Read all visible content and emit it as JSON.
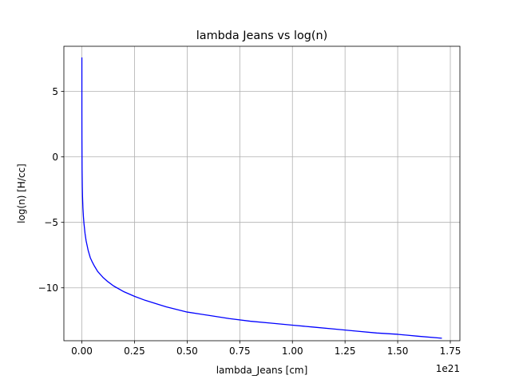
{
  "chart_data": {
    "type": "line",
    "title": "lambda Jeans vs log(n)",
    "xlabel": "lambda_Jeans [cm]",
    "ylabel": "log(n) [H/cc]",
    "x_offset_label": "1e21",
    "x_scale": 1e+21,
    "xlim": [
      -0.0855,
      1.7955
    ],
    "ylim": [
      -14.04,
      8.45
    ],
    "grid": true,
    "xticks": [
      0.0,
      0.25,
      0.5,
      0.75,
      1.0,
      1.25,
      1.5,
      1.75
    ],
    "xtick_labels": [
      "0.00",
      "0.25",
      "0.50",
      "0.75",
      "1.00",
      "1.25",
      "1.50",
      "1.75"
    ],
    "yticks": [
      5,
      0,
      -5,
      -10
    ],
    "ytick_labels": [
      "5",
      "0",
      "−5",
      "−10"
    ],
    "series": [
      {
        "name": "lambda_Jeans",
        "color": "#0000ff",
        "x": [
          0.0,
          0.0001,
          0.0003,
          0.001,
          0.002,
          0.003,
          0.005,
          0.0075,
          0.01,
          0.015,
          0.02,
          0.03,
          0.04,
          0.05,
          0.06,
          0.075,
          0.1,
          0.125,
          0.15,
          0.2,
          0.25,
          0.3,
          0.4,
          0.5,
          0.6,
          0.7,
          0.8,
          0.9,
          1.0,
          1.1,
          1.2,
          1.3,
          1.4,
          1.5,
          1.6,
          1.71
        ],
        "y": [
          7.6,
          3.3,
          1.35,
          -1.0,
          -2.25,
          -3.0,
          -3.9,
          -4.6,
          -5.1,
          -5.85,
          -6.4,
          -7.15,
          -7.7,
          -8.05,
          -8.35,
          -8.75,
          -9.2,
          -9.55,
          -9.85,
          -10.3,
          -10.65,
          -10.95,
          -11.45,
          -11.85,
          -12.1,
          -12.35,
          -12.55,
          -12.7,
          -12.85,
          -13.0,
          -13.15,
          -13.3,
          -13.45,
          -13.55,
          -13.7,
          -13.85
        ]
      }
    ]
  }
}
